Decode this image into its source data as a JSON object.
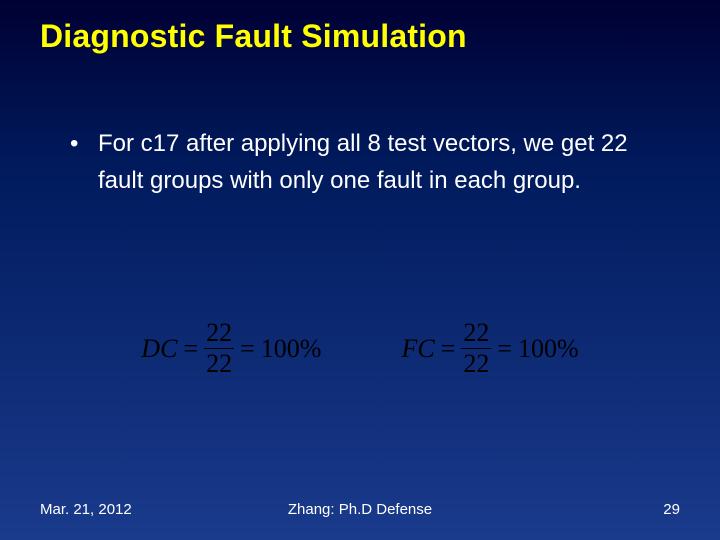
{
  "title": {
    "text": "Diagnostic Fault Simulation",
    "color": "#ffff00",
    "fontsize": 32,
    "fontweight": "bold"
  },
  "bullet": {
    "marker": "•",
    "text": "For c17 after applying all 8 test vectors, we get 22 fault groups with only one fault in each group.",
    "color": "#ffffff",
    "fontsize": 24
  },
  "formulas": {
    "color": "#000000",
    "fontfamily": "Times New Roman",
    "fontsize": 26,
    "dc": {
      "label": "DC",
      "numerator": "22",
      "denominator": "22",
      "result": "100%"
    },
    "fc": {
      "label": "FC",
      "numerator": "22",
      "denominator": "22",
      "result": "100%"
    },
    "equals": "="
  },
  "footer": {
    "date": "Mar.  21, 2012",
    "center": "Zhang: Ph.D Defense",
    "page": "29",
    "color": "#ffffff",
    "fontsize": 15
  },
  "background": {
    "gradient_top": "#000033",
    "gradient_mid": "#001a5c",
    "gradient_bottom": "#1a3a8c"
  }
}
